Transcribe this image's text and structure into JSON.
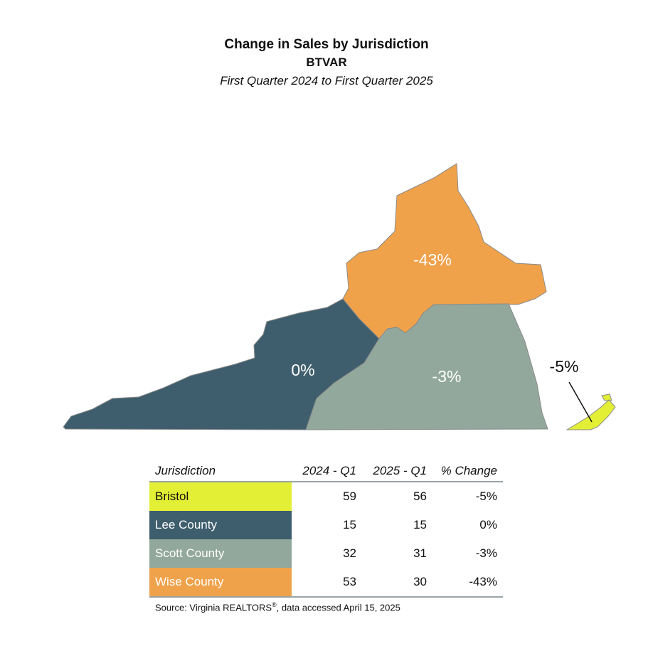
{
  "header": {
    "title": "Change in Sales by Jurisdiction",
    "subtitle": "BTVAR",
    "period": "First Quarter 2024 to First Quarter 2025"
  },
  "regions": [
    {
      "name": "Bristol",
      "change_label": "-5%",
      "color": "#e3ef35"
    },
    {
      "name": "Lee County",
      "change_label": "0%",
      "color": "#3e5e6d"
    },
    {
      "name": "Scott County",
      "change_label": "-3%",
      "color": "#93a89c"
    },
    {
      "name": "Wise County",
      "change_label": "-43%",
      "color": "#f0a24b"
    }
  ],
  "table": {
    "headers": [
      "Jurisdiction",
      "2024 - Q1",
      "2025 - Q1",
      "% Change"
    ],
    "rows": [
      {
        "jurisdiction": "Bristol",
        "q1_2024": "59",
        "q1_2025": "56",
        "change": "-5%",
        "color": "#e3ef35",
        "text_color": "#111111"
      },
      {
        "jurisdiction": "Lee County",
        "q1_2024": "15",
        "q1_2025": "15",
        "change": "0%",
        "color": "#3e5e6d",
        "text_color": "#ffffff"
      },
      {
        "jurisdiction": "Scott County",
        "q1_2024": "32",
        "q1_2025": "31",
        "change": "-3%",
        "color": "#93a89c",
        "text_color": "#ffffff"
      },
      {
        "jurisdiction": "Wise County",
        "q1_2024": "53",
        "q1_2025": "30",
        "change": "-43%",
        "color": "#f0a24b",
        "text_color": "#ffffff"
      }
    ]
  },
  "source": {
    "text": "Source: Virginia REALTORS",
    "mark": "®",
    "suffix": ", data accessed April 15, 2025"
  }
}
